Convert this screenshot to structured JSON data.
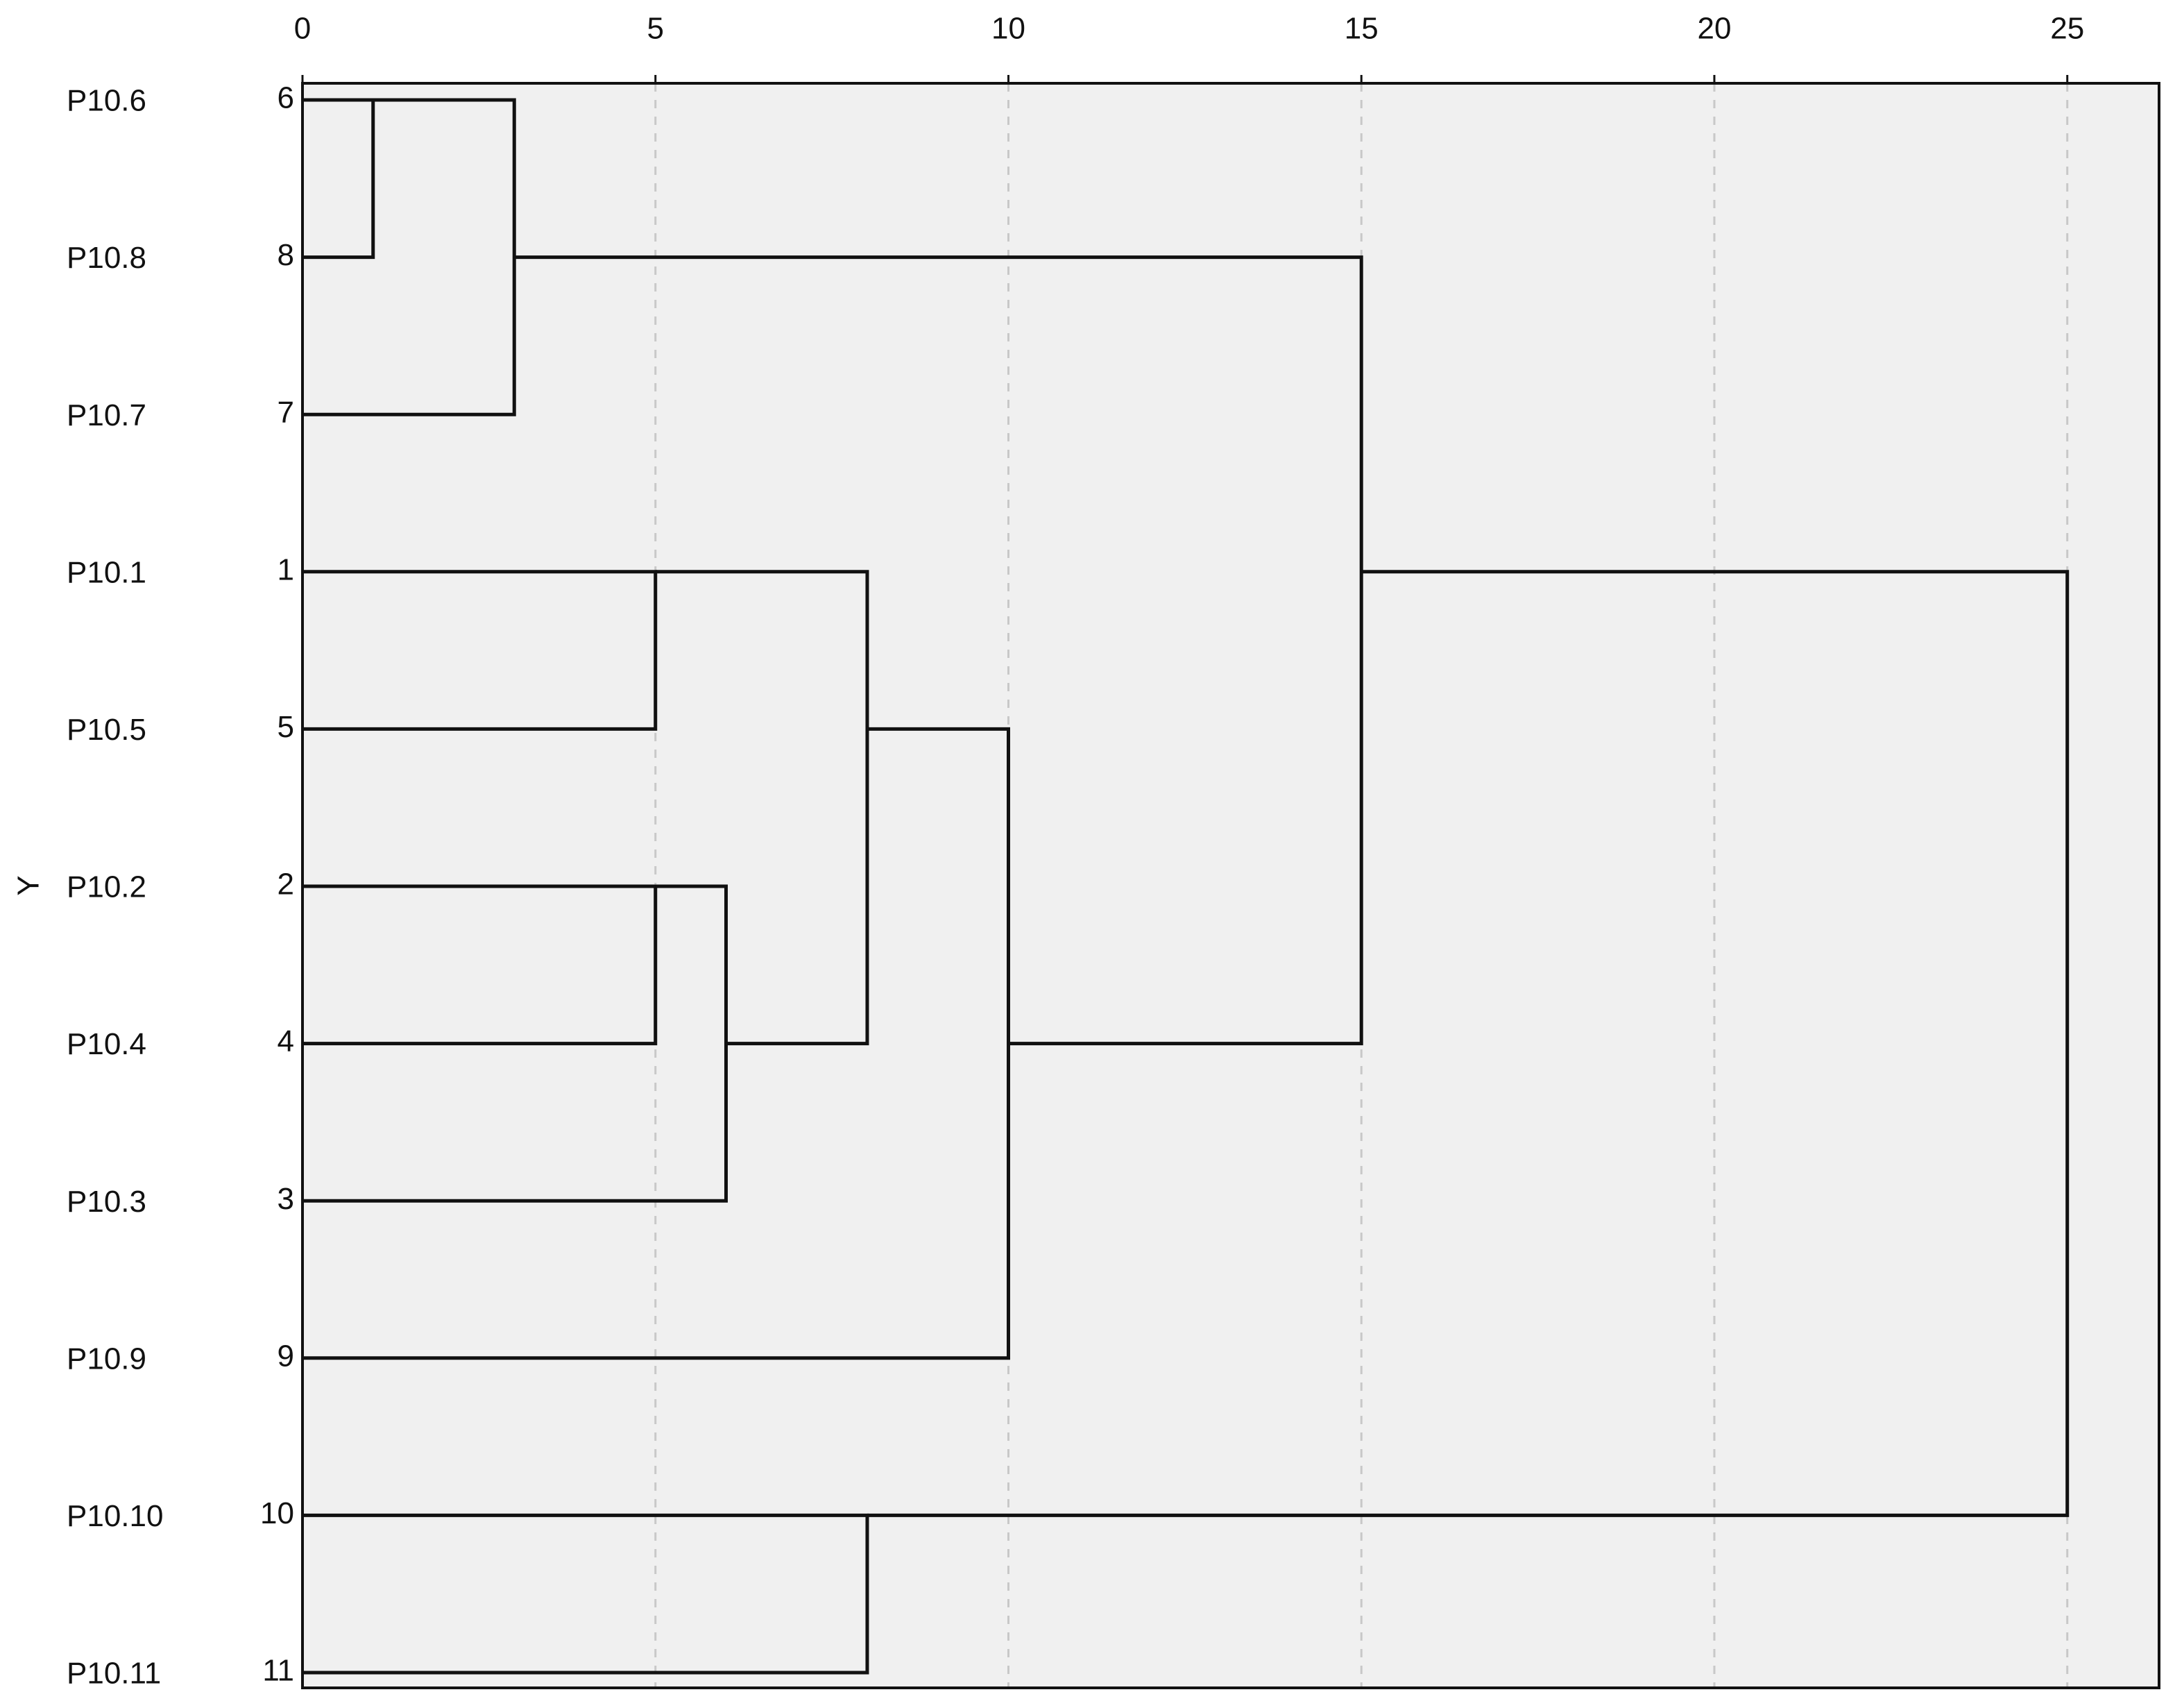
{
  "chart_data": {
    "type": "dendrogram",
    "y_label": "Y",
    "leaf_names": [
      "P10.6",
      "P10.8",
      "P10.7",
      "P10.1",
      "P10.5",
      "P10.2",
      "P10.4",
      "P10.3",
      "P10.9",
      "P10.10",
      "P10.11"
    ],
    "leaf_numbers": [
      6,
      8,
      7,
      1,
      5,
      2,
      4,
      3,
      9,
      10,
      11
    ],
    "merges": [
      {
        "children": [
          0,
          1
        ],
        "height": 1
      },
      {
        "children": [
          11,
          2
        ],
        "height": 3
      },
      {
        "children": [
          3,
          4
        ],
        "height": 5
      },
      {
        "children": [
          5,
          6
        ],
        "height": 5
      },
      {
        "children": [
          14,
          7
        ],
        "height": 6
      },
      {
        "children": [
          13,
          15
        ],
        "height": 8
      },
      {
        "children": [
          16,
          8
        ],
        "height": 10
      },
      {
        "children": [
          12,
          17
        ],
        "height": 15
      },
      {
        "children": [
          9,
          10
        ],
        "height": 8
      },
      {
        "children": [
          18,
          19
        ],
        "height": 25
      }
    ],
    "xlim": [
      0,
      26.3
    ],
    "xticks": [
      0,
      5,
      10,
      15,
      20,
      25
    ],
    "grid": true,
    "color": "#111111",
    "background": "#f0f0f0"
  }
}
